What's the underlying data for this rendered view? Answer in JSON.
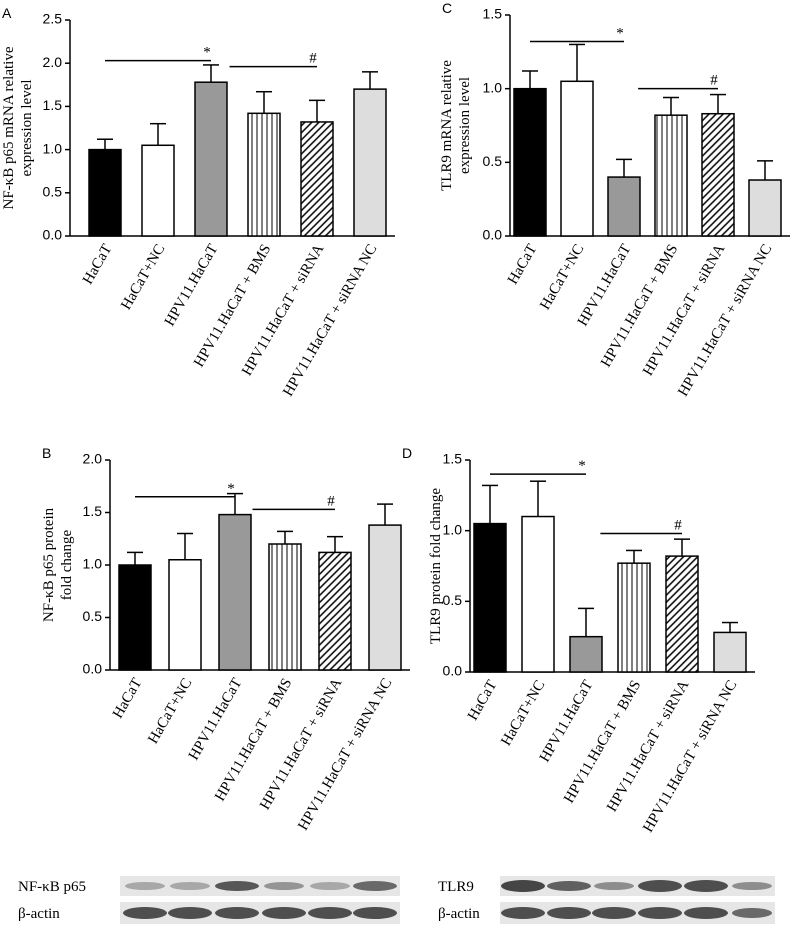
{
  "chart_data": [
    {
      "type": "bar",
      "panel": "A",
      "ylabel": [
        "NF-κB p65 mRNA relative",
        "expression level"
      ],
      "categories": [
        "HaCaT",
        "HaCaT+NC",
        "HPV11.HaCaT",
        "HPV11.HaCaT + BMS",
        "HPV11.HaCaT + siRNA",
        "HPV11.HaCaT + siRNA NC"
      ],
      "values": [
        1.0,
        1.05,
        1.78,
        1.42,
        1.32,
        1.7
      ],
      "errors": [
        0.12,
        0.25,
        0.2,
        0.25,
        0.25,
        0.2
      ],
      "colors": [
        "#000000",
        "#ffffff",
        "#999999",
        "#ffffff",
        "#ffffff",
        "#dddddd"
      ],
      "hatches": [
        "none",
        "none",
        "none",
        "vertical",
        "diagonal",
        "none"
      ],
      "ylim": [
        0,
        2.5
      ],
      "yticks": [
        {
          "value": 0,
          "label": "0.0"
        },
        0.5,
        {
          "value": 1,
          "label": "1.0"
        },
        1.5,
        {
          "value": 2,
          "label": "2.0"
        },
        2.5
      ],
      "annotations": [
        "*",
        "#"
      ]
    },
    {
      "type": "bar",
      "panel": "B",
      "ylabel": [
        "NF-κB p65 protein",
        "fold change"
      ],
      "categories": [
        "HaCaT",
        "HaCaT+NC",
        "HPV11.HaCaT",
        "HPV11.HaCaT + BMS",
        "HPV11.HaCaT + siRNA",
        "HPV11.HaCaT + siRNA NC"
      ],
      "values": [
        1.0,
        1.05,
        1.48,
        1.2,
        1.12,
        1.38
      ],
      "errors": [
        0.12,
        0.25,
        0.2,
        0.12,
        0.15,
        0.2
      ],
      "colors": [
        "#000000",
        "#ffffff",
        "#999999",
        "#ffffff",
        "#ffffff",
        "#dddddd"
      ],
      "hatches": [
        "none",
        "none",
        "none",
        "vertical",
        "diagonal",
        "none"
      ],
      "ylim": [
        0,
        2
      ],
      "yticks": [
        {
          "value": 0,
          "label": "0.0"
        },
        0.5,
        {
          "value": 1,
          "label": "1.0"
        },
        1.5,
        {
          "value": 2,
          "label": "2.0"
        }
      ],
      "annotations": [
        "*",
        "#"
      ]
    },
    {
      "type": "bar",
      "panel": "C",
      "ylabel": [
        "TLR9 mRNA relative",
        "expression level"
      ],
      "categories": [
        "HaCaT",
        "HaCaT+NC",
        "HPV11.HaCaT",
        "HPV11.HaCaT + BMS",
        "HPV11.HaCaT + siRNA",
        "HPV11.HaCaT + siRNA NC"
      ],
      "values": [
        1.0,
        1.05,
        0.4,
        0.82,
        0.83,
        0.38
      ],
      "errors": [
        0.12,
        0.25,
        0.12,
        0.12,
        0.13,
        0.13
      ],
      "colors": [
        "#000000",
        "#ffffff",
        "#999999",
        "#ffffff",
        "#ffffff",
        "#dddddd"
      ],
      "hatches": [
        "none",
        "none",
        "none",
        "vertical",
        "diagonal",
        "none"
      ],
      "ylim": [
        0,
        1.5
      ],
      "yticks": [
        {
          "value": 0,
          "label": "0.0"
        },
        0.5,
        {
          "value": 1,
          "label": "1.0"
        },
        1.5
      ],
      "annotations": [
        "*",
        "#"
      ]
    },
    {
      "type": "bar",
      "panel": "D",
      "ylabel": [
        "TLR9 protein fold change"
      ],
      "categories": [
        "HaCaT",
        "HaCaT+NC",
        "HPV11.HaCaT",
        "HPV11.HaCaT + BMS",
        "HPV11.HaCaT + siRNA",
        "HPV11.HaCaT + siRNA NC"
      ],
      "values": [
        1.05,
        1.1,
        0.25,
        0.77,
        0.82,
        0.28
      ],
      "errors": [
        0.27,
        0.25,
        0.2,
        0.09,
        0.12,
        0.07
      ],
      "colors": [
        "#000000",
        "#ffffff",
        "#999999",
        "#ffffff",
        "#ffffff",
        "#dddddd"
      ],
      "hatches": [
        "none",
        "none",
        "none",
        "vertical",
        "diagonal",
        "none"
      ],
      "ylim": [
        0,
        1.5
      ],
      "yticks": [
        {
          "value": 0,
          "label": "0.0"
        },
        0.5,
        {
          "value": 1,
          "label": "1.0"
        },
        1.5
      ],
      "annotations": [
        "*",
        "#"
      ]
    }
  ],
  "blots": [
    {
      "rows": [
        "NF-κB p65",
        "β-actin"
      ]
    },
    {
      "rows": [
        "TLR9",
        "β-actin"
      ]
    }
  ]
}
